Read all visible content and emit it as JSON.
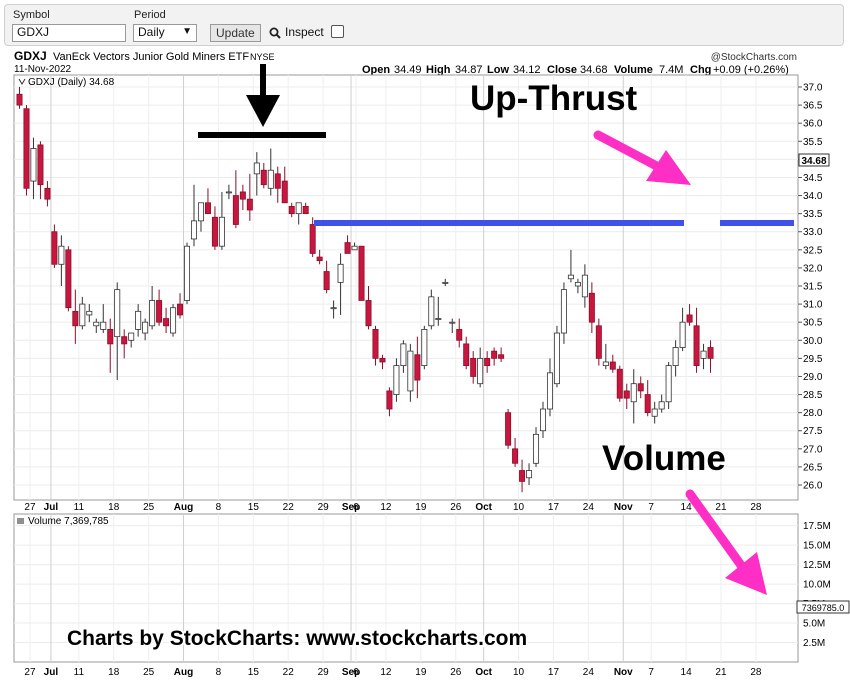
{
  "toolbar": {
    "symbol_label": "Symbol",
    "symbol_value": "GDXJ",
    "period_label": "Period",
    "period_value": "Daily",
    "update_label": "Update",
    "inspect_label": "Inspect"
  },
  "header": {
    "symbol": "GDXJ",
    "name": "VanEck Vectors Junior Gold Miners ETF",
    "exchange": "NYSE",
    "copyright": "@StockCharts.com",
    "date": "11-Nov-2022",
    "open_label": "Open",
    "open": "34.49",
    "high_label": "High",
    "high": "34.87",
    "low_label": "Low",
    "low": "34.12",
    "close_label": "Close",
    "close": "34.68",
    "volume_label": "Volume",
    "volume": "7.4M",
    "chg_label": "Chg",
    "chg": "+0.09 (+0.26%)",
    "price_legend": "GDXJ (Daily) 34.68",
    "volume_legend": "Volume 7,369,785",
    "last_price_tag": "34.68",
    "last_volume_tag": "7369785.0"
  },
  "annotations": {
    "upthrust": "Up-Thrust",
    "volume": "Volume",
    "credit": "Charts by StockCharts:  www.stockcharts.com"
  },
  "colors": {
    "up": "#ffffff",
    "down": "#c8163e",
    "annotation_black": "#000000",
    "blue_line": "#3f51e8",
    "pink_arrow": "#ff2ec4",
    "vol_down": "#d96d74",
    "vol_up": "#8f8f8f"
  },
  "chart_data": {
    "type": "candlestick",
    "ylim": [
      25.7,
      37.3
    ],
    "price_ticks": [
      "37.0",
      "36.5",
      "36.0",
      "35.5",
      "35.0",
      "34.5",
      "34.0",
      "33.5",
      "33.0",
      "32.5",
      "32.0",
      "31.5",
      "31.0",
      "30.5",
      "30.0",
      "29.5",
      "29.0",
      "28.5",
      "28.0",
      "27.5",
      "27.0",
      "26.5",
      "26.0"
    ],
    "volume_ticks": [
      "17.5M",
      "15.0M",
      "12.5M",
      "10.0M",
      "7.5M",
      "5.0M",
      "2.5M"
    ],
    "volume_ylim": [
      0,
      19000000
    ],
    "x_ticks": [
      {
        "label": "27",
        "i": 1.5
      },
      {
        "label": "Jul",
        "i": 4.5
      },
      {
        "label": "11",
        "i": 8.5
      },
      {
        "label": "18",
        "i": 13.5
      },
      {
        "label": "25",
        "i": 18.5
      },
      {
        "label": "Aug",
        "i": 23.5
      },
      {
        "label": "8",
        "i": 28.5
      },
      {
        "label": "15",
        "i": 33.5
      },
      {
        "label": "22",
        "i": 38.5
      },
      {
        "label": "29",
        "i": 43.5
      },
      {
        "label": "Sep",
        "i": 47.5
      },
      {
        "label": "6",
        "i": 48.2
      },
      {
        "label": "12",
        "i": 52.5
      },
      {
        "label": "19",
        "i": 57.5
      },
      {
        "label": "26",
        "i": 62.5
      },
      {
        "label": "Oct",
        "i": 66.5
      },
      {
        "label": "10",
        "i": 71.5
      },
      {
        "label": "17",
        "i": 76.5
      },
      {
        "label": "24",
        "i": 81.5
      },
      {
        "label": "Nov",
        "i": 86.5
      },
      {
        "label": "7",
        "i": 90.5
      },
      {
        "label": "14",
        "i": 95.5
      },
      {
        "label": "21",
        "i": 100.5
      },
      {
        "label": "28",
        "i": 105.5
      }
    ],
    "candles": [
      [
        36.8,
        37.0,
        36.4,
        36.5
      ],
      [
        36.4,
        36.5,
        34.0,
        34.2
      ],
      [
        34.4,
        35.6,
        33.9,
        35.3
      ],
      [
        35.4,
        35.5,
        33.9,
        34.3
      ],
      [
        34.2,
        34.4,
        33.7,
        33.9
      ],
      [
        33.0,
        33.2,
        32.0,
        32.1
      ],
      [
        32.1,
        32.9,
        31.5,
        32.6
      ],
      [
        32.5,
        32.6,
        30.8,
        30.9
      ],
      [
        30.8,
        31.4,
        29.9,
        30.4
      ],
      [
        30.4,
        31.2,
        30.3,
        31.0
      ],
      [
        30.7,
        31.0,
        30.5,
        30.8
      ],
      [
        30.4,
        30.6,
        30.2,
        30.5
      ],
      [
        30.3,
        31.0,
        30.2,
        30.5
      ],
      [
        30.3,
        30.6,
        29.1,
        29.9
      ],
      [
        30.1,
        31.6,
        28.9,
        31.4
      ],
      [
        30.1,
        30.3,
        29.5,
        29.9
      ],
      [
        30.0,
        30.2,
        29.8,
        30.2
      ],
      [
        30.3,
        31.0,
        30.1,
        30.8
      ],
      [
        30.2,
        30.6,
        30.0,
        30.5
      ],
      [
        30.4,
        31.5,
        30.3,
        31.1
      ],
      [
        31.1,
        31.4,
        30.4,
        30.5
      ],
      [
        30.6,
        30.9,
        30.2,
        30.4
      ],
      [
        30.2,
        31.0,
        30.1,
        30.9
      ],
      [
        31.0,
        31.3,
        30.6,
        30.7
      ],
      [
        31.1,
        32.7,
        31.0,
        32.6
      ],
      [
        32.8,
        34.3,
        32.6,
        33.3
      ],
      [
        33.3,
        33.8,
        33.0,
        33.8
      ],
      [
        33.8,
        34.2,
        33.5,
        33.5
      ],
      [
        33.4,
        33.7,
        32.5,
        32.6
      ],
      [
        32.6,
        34.1,
        32.5,
        33.4
      ],
      [
        34.1,
        34.3,
        33.9,
        34.1
      ],
      [
        34.0,
        34.7,
        33.1,
        33.2
      ],
      [
        34.1,
        34.3,
        33.6,
        33.9
      ],
      [
        33.9,
        34.6,
        33.3,
        33.6
      ],
      [
        34.6,
        35.2,
        34.0,
        34.9
      ],
      [
        34.7,
        34.9,
        34.2,
        34.3
      ],
      [
        34.2,
        35.3,
        34.0,
        34.7
      ],
      [
        34.6,
        34.8,
        33.8,
        34.2
      ],
      [
        34.4,
        34.8,
        33.8,
        33.8
      ],
      [
        33.7,
        33.8,
        33.4,
        33.5
      ],
      [
        33.5,
        33.8,
        33.2,
        33.8
      ],
      [
        33.7,
        33.8,
        33.5,
        33.5
      ],
      [
        33.2,
        33.4,
        32.3,
        32.4
      ],
      [
        32.3,
        32.5,
        32.1,
        32.2
      ],
      [
        31.9,
        32.2,
        31.3,
        31.4
      ],
      [
        30.9,
        31.1,
        30.6,
        30.9
      ],
      [
        31.6,
        32.4,
        30.7,
        32.1
      ],
      [
        32.7,
        32.9,
        32.4,
        32.4
      ],
      [
        32.5,
        32.7,
        32.5,
        32.6
      ],
      [
        32.6,
        32.6,
        31.1,
        31.1
      ],
      [
        31.1,
        31.5,
        30.3,
        30.4
      ],
      [
        30.3,
        30.4,
        29.3,
        29.5
      ],
      [
        29.5,
        29.6,
        29.2,
        29.4
      ],
      [
        28.6,
        28.7,
        27.9,
        28.1
      ],
      [
        28.5,
        29.5,
        28.3,
        29.3
      ],
      [
        29.3,
        30.0,
        29.1,
        29.9
      ],
      [
        28.6,
        29.9,
        28.3,
        29.7
      ],
      [
        29.6,
        30.1,
        28.4,
        28.9
      ],
      [
        29.3,
        30.4,
        29.2,
        30.3
      ],
      [
        30.4,
        31.4,
        30.3,
        31.2
      ],
      [
        30.6,
        31.2,
        30.4,
        30.6
      ],
      [
        31.6,
        31.7,
        31.5,
        31.6
      ],
      [
        30.5,
        30.6,
        30.2,
        30.5
      ],
      [
        30.3,
        30.6,
        29.8,
        30.0
      ],
      [
        29.9,
        30.1,
        29.2,
        29.3
      ],
      [
        29.5,
        29.7,
        28.8,
        29.0
      ],
      [
        28.8,
        29.8,
        28.7,
        29.5
      ],
      [
        29.5,
        29.7,
        29.1,
        29.3
      ],
      [
        29.7,
        29.8,
        29.3,
        29.5
      ],
      [
        29.6,
        29.8,
        29.4,
        29.5
      ],
      [
        28.0,
        28.1,
        27.0,
        27.1
      ],
      [
        27.0,
        27.3,
        26.5,
        26.6
      ],
      [
        26.4,
        26.7,
        25.8,
        26.1
      ],
      [
        26.2,
        26.6,
        26.0,
        26.4
      ],
      [
        26.6,
        27.6,
        26.5,
        27.4
      ],
      [
        27.5,
        28.3,
        27.3,
        28.1
      ],
      [
        28.1,
        29.5,
        27.9,
        29.1
      ],
      [
        28.8,
        30.4,
        28.7,
        30.2
      ],
      [
        30.2,
        31.6,
        29.9,
        31.4
      ],
      [
        31.7,
        32.5,
        31.6,
        31.8
      ],
      [
        31.5,
        31.7,
        31.3,
        31.6
      ],
      [
        31.2,
        32.1,
        30.9,
        31.8
      ],
      [
        31.3,
        31.6,
        30.2,
        30.5
      ],
      [
        30.4,
        30.6,
        29.3,
        29.5
      ],
      [
        29.3,
        29.9,
        29.2,
        29.4
      ],
      [
        29.4,
        29.6,
        29.1,
        29.2
      ],
      [
        29.2,
        29.3,
        28.3,
        28.4
      ],
      [
        28.6,
        28.8,
        28.1,
        28.4
      ],
      [
        28.3,
        29.2,
        27.7,
        28.8
      ],
      [
        28.8,
        29.0,
        28.4,
        28.6
      ],
      [
        28.5,
        28.9,
        27.9,
        28.0
      ],
      [
        27.9,
        28.3,
        27.7,
        28.1
      ],
      [
        28.1,
        28.5,
        28.0,
        28.3
      ],
      [
        28.3,
        29.4,
        28.1,
        29.3
      ],
      [
        29.3,
        30.0,
        29.0,
        29.8
      ],
      [
        29.8,
        30.9,
        29.7,
        30.5
      ],
      [
        30.7,
        31.0,
        30.4,
        30.5
      ],
      [
        30.4,
        30.9,
        29.1,
        29.3
      ],
      [
        29.5,
        29.9,
        29.2,
        29.7
      ],
      [
        29.8,
        30.0,
        29.1,
        29.5
      ]
    ]
  }
}
